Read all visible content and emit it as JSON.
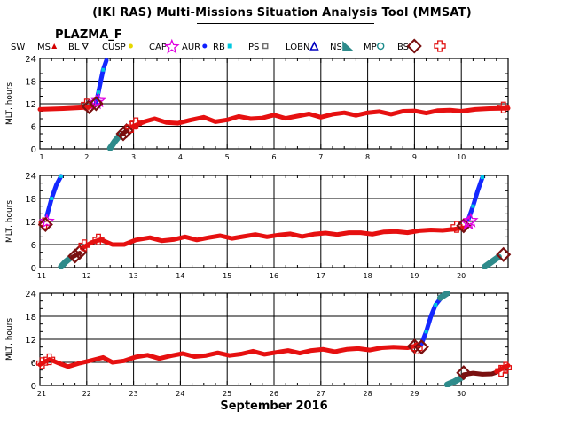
{
  "title": "(IKI RAS) Multi-Missions Situation Analysis Tool (MMSAT)",
  "mission": "PLAZMA_F",
  "legend": [
    {
      "label": "SW",
      "marker": "none",
      "color": "#000000"
    },
    {
      "label": "MS",
      "marker": "triangle-up",
      "color": "#d40000"
    },
    {
      "label": "BL",
      "marker": "triangle-down",
      "color": "#000000"
    },
    {
      "label": "CUSP",
      "marker": "dot",
      "color": "#e6d800"
    },
    {
      "label": "CAP",
      "marker": "star",
      "color": "#e000e0"
    },
    {
      "label": "AUR",
      "marker": "dot",
      "color": "#1020ff"
    },
    {
      "label": "RB",
      "marker": "square",
      "color": "#00c8e0"
    },
    {
      "label": "PS",
      "marker": "square-open",
      "color": "#707070"
    },
    {
      "label": "LOBN",
      "marker": "triangle-open",
      "color": "#0000c0"
    },
    {
      "label": "NS",
      "marker": "triangle-fill",
      "color": "#2e8b8b"
    },
    {
      "label": "MP",
      "marker": "circle-open",
      "color": "#1a8a8a"
    },
    {
      "label": "BS",
      "marker": "diamond-open",
      "color": "#7a1010"
    },
    {
      "label": "",
      "marker": "cross-open",
      "color": "#e01010"
    }
  ],
  "colors": {
    "sw": "#e61010",
    "aur": "#1428ff",
    "ns": "#2e8b8b",
    "bs": "#7a1010",
    "cross": "#e01010",
    "cap": "#e000e0",
    "rb": "#00c8e0",
    "ps": "#808080",
    "grid": "#000000"
  },
  "chart_data": [
    {
      "type": "line",
      "ylabel": "MLT, hours",
      "xlim": [
        1,
        11
      ],
      "ylim": [
        0,
        24
      ],
      "xticks": [
        1,
        2,
        3,
        4,
        5,
        6,
        7,
        8,
        9,
        10
      ],
      "yticks": [
        0,
        6,
        12,
        18,
        24
      ],
      "series": [
        {
          "name": "SW",
          "points": [
            [
              1,
              10.5
            ],
            [
              1.5,
              10.7
            ],
            [
              1.95,
              11.0
            ],
            [
              2.1,
              11.3
            ]
          ]
        },
        {
          "name": "AUR",
          "points": [
            [
              2.2,
              12.5
            ],
            [
              2.25,
              15
            ],
            [
              2.3,
              18
            ],
            [
              2.35,
              21
            ],
            [
              2.42,
              23.5
            ]
          ]
        },
        {
          "name": "NS",
          "points": [
            [
              2.5,
              0.2
            ],
            [
              2.6,
              2
            ],
            [
              2.7,
              3.5
            ]
          ]
        },
        {
          "name": "BS",
          "points": [
            [
              2.75,
              3.8
            ],
            [
              2.85,
              4.8
            ]
          ]
        },
        {
          "name": "SW",
          "points": [
            [
              2.95,
              5.8
            ],
            [
              3.25,
              7.3
            ],
            [
              3.45,
              8.0
            ],
            [
              3.7,
              7.0
            ],
            [
              3.95,
              6.8
            ],
            [
              4.2,
              7.6
            ],
            [
              4.5,
              8.4
            ],
            [
              4.75,
              7.2
            ],
            [
              5.0,
              7.7
            ],
            [
              5.25,
              8.6
            ],
            [
              5.5,
              8.0
            ],
            [
              5.75,
              8.2
            ],
            [
              6.0,
              9.0
            ],
            [
              6.25,
              8.1
            ],
            [
              6.5,
              8.7
            ],
            [
              6.75,
              9.3
            ],
            [
              7.0,
              8.4
            ],
            [
              7.25,
              9.2
            ],
            [
              7.5,
              9.6
            ],
            [
              7.75,
              8.9
            ],
            [
              8.0,
              9.6
            ],
            [
              8.25,
              9.9
            ],
            [
              8.5,
              9.2
            ],
            [
              8.75,
              10.0
            ],
            [
              9.0,
              10.1
            ],
            [
              9.25,
              9.5
            ],
            [
              9.5,
              10.2
            ],
            [
              9.75,
              10.3
            ],
            [
              10.0,
              10.0
            ],
            [
              10.3,
              10.5
            ],
            [
              10.6,
              10.7
            ],
            [
              11,
              10.8
            ]
          ]
        }
      ],
      "markers": [
        {
          "kind": "cross",
          "x": 2.0,
          "y": 11.8
        },
        {
          "kind": "bs",
          "x": 2.05,
          "y": 11.2
        },
        {
          "kind": "star",
          "x": 2.2,
          "y": 12.3
        },
        {
          "kind": "star",
          "x": 2.25,
          "y": 12.8
        },
        {
          "kind": "bs",
          "x": 2.2,
          "y": 12.0
        },
        {
          "kind": "bs",
          "x": 2.78,
          "y": 4.0
        },
        {
          "kind": "bs",
          "x": 2.85,
          "y": 4.8
        },
        {
          "kind": "cross",
          "x": 2.95,
          "y": 5.8
        },
        {
          "kind": "cross",
          "x": 3.05,
          "y": 6.8
        },
        {
          "kind": "cross",
          "x": 10.9,
          "y": 11.0
        }
      ]
    },
    {
      "type": "line",
      "ylabel": "MLT, hours",
      "xlim": [
        11,
        21
      ],
      "ylim": [
        0,
        24
      ],
      "xticks": [
        11,
        12,
        13,
        14,
        15,
        16,
        17,
        18,
        19,
        20
      ],
      "yticks": [
        0,
        6,
        12,
        18,
        24
      ],
      "series": [
        {
          "name": "AUR",
          "points": [
            [
              11.15,
              13.5
            ],
            [
              11.25,
              18
            ],
            [
              11.35,
              21.5
            ],
            [
              11.45,
              23.8
            ]
          ]
        },
        {
          "name": "NS",
          "points": [
            [
              11.45,
              0.2
            ],
            [
              11.55,
              1.5
            ],
            [
              11.65,
              2.5
            ]
          ]
        },
        {
          "name": "BS",
          "points": [
            [
              11.7,
              2.8
            ],
            [
              11.85,
              3.8
            ]
          ]
        },
        {
          "name": "SW",
          "points": [
            [
              11.9,
              5.0
            ],
            [
              12.1,
              6.5
            ],
            [
              12.3,
              7.3
            ],
            [
              12.55,
              6.0
            ],
            [
              12.8,
              6.0
            ],
            [
              13.05,
              7.2
            ],
            [
              13.35,
              7.8
            ],
            [
              13.6,
              7.0
            ],
            [
              13.85,
              7.3
            ],
            [
              14.1,
              8.0
            ],
            [
              14.35,
              7.2
            ],
            [
              14.6,
              7.8
            ],
            [
              14.85,
              8.3
            ],
            [
              15.1,
              7.6
            ],
            [
              15.35,
              8.1
            ],
            [
              15.6,
              8.6
            ],
            [
              15.85,
              8.0
            ],
            [
              16.1,
              8.5
            ],
            [
              16.35,
              8.8
            ],
            [
              16.6,
              8.1
            ],
            [
              16.85,
              8.7
            ],
            [
              17.1,
              9.0
            ],
            [
              17.35,
              8.6
            ],
            [
              17.6,
              9.1
            ],
            [
              17.85,
              9.1
            ],
            [
              18.1,
              8.7
            ],
            [
              18.35,
              9.3
            ],
            [
              18.6,
              9.4
            ],
            [
              18.85,
              9.1
            ],
            [
              19.1,
              9.6
            ],
            [
              19.35,
              9.8
            ],
            [
              19.6,
              9.7
            ],
            [
              19.85,
              10.0
            ],
            [
              20.1,
              10.4
            ]
          ]
        },
        {
          "name": "AUR",
          "points": [
            [
              20.15,
              12.5
            ],
            [
              20.25,
              16
            ],
            [
              20.35,
              20
            ],
            [
              20.45,
              23.5
            ]
          ]
        },
        {
          "name": "NS",
          "points": [
            [
              20.5,
              0.2
            ],
            [
              20.65,
              1.5
            ],
            [
              20.8,
              2.8
            ]
          ]
        }
      ],
      "markers": [
        {
          "kind": "cross",
          "x": 11.1,
          "y": 11.5
        },
        {
          "kind": "star",
          "x": 11.15,
          "y": 12.0
        },
        {
          "kind": "bs",
          "x": 11.12,
          "y": 11.2
        },
        {
          "kind": "bs",
          "x": 11.75,
          "y": 3.0
        },
        {
          "kind": "bs",
          "x": 11.85,
          "y": 4.0
        },
        {
          "kind": "cross",
          "x": 11.95,
          "y": 5.8
        },
        {
          "kind": "cross",
          "x": 12.25,
          "y": 7.3
        },
        {
          "kind": "cross",
          "x": 19.9,
          "y": 10.6
        },
        {
          "kind": "bs",
          "x": 20.05,
          "y": 10.9
        },
        {
          "kind": "star",
          "x": 20.15,
          "y": 11.6
        },
        {
          "kind": "star",
          "x": 20.2,
          "y": 12.2
        },
        {
          "kind": "bs",
          "x": 20.9,
          "y": 3.4
        }
      ]
    },
    {
      "type": "line",
      "ylabel": "MLT, hours",
      "xlabel": "September 2016",
      "xlim": [
        21,
        31
      ],
      "ylim": [
        0,
        24
      ],
      "xticks": [
        21,
        22,
        23,
        24,
        25,
        26,
        27,
        28,
        29,
        30
      ],
      "yticks": [
        0,
        6,
        12,
        18,
        24
      ],
      "series": [
        {
          "name": "SW",
          "points": [
            [
              21.0,
              5.4
            ],
            [
              21.2,
              6.8
            ],
            [
              21.4,
              5.8
            ],
            [
              21.6,
              4.9
            ],
            [
              21.85,
              5.8
            ],
            [
              22.1,
              6.5
            ],
            [
              22.35,
              7.3
            ],
            [
              22.55,
              6.0
            ],
            [
              22.8,
              6.4
            ],
            [
              23.05,
              7.4
            ],
            [
              23.3,
              7.9
            ],
            [
              23.55,
              7.0
            ],
            [
              23.8,
              7.7
            ],
            [
              24.05,
              8.3
            ],
            [
              24.3,
              7.5
            ],
            [
              24.55,
              7.8
            ],
            [
              24.8,
              8.5
            ],
            [
              25.05,
              7.8
            ],
            [
              25.3,
              8.2
            ],
            [
              25.55,
              8.9
            ],
            [
              25.8,
              8.1
            ],
            [
              26.05,
              8.6
            ],
            [
              26.3,
              9.1
            ],
            [
              26.55,
              8.4
            ],
            [
              26.8,
              9.1
            ],
            [
              27.05,
              9.4
            ],
            [
              27.3,
              8.8
            ],
            [
              27.55,
              9.4
            ],
            [
              27.8,
              9.6
            ],
            [
              28.05,
              9.2
            ],
            [
              28.3,
              9.8
            ],
            [
              28.55,
              10.0
            ],
            [
              28.85,
              9.8
            ],
            [
              29.1,
              10.5
            ]
          ]
        },
        {
          "name": "AUR",
          "points": [
            [
              29.15,
              10.8
            ],
            [
              29.25,
              14
            ],
            [
              29.35,
              18
            ],
            [
              29.45,
              21
            ],
            [
              29.55,
              22.5
            ]
          ]
        },
        {
          "name": "NS",
          "points": [
            [
              29.55,
              22.8
            ],
            [
              29.7,
              24.0
            ]
          ]
        },
        {
          "name": "NS",
          "points": [
            [
              29.7,
              0.2
            ],
            [
              29.85,
              1.0
            ],
            [
              30.0,
              2.0
            ]
          ]
        },
        {
          "name": "BS",
          "points": [
            [
              30.05,
              2.8
            ],
            [
              30.25,
              3.2
            ],
            [
              30.45,
              2.9
            ],
            [
              30.65,
              3.0
            ],
            [
              30.75,
              3.4
            ]
          ]
        },
        {
          "name": "SW",
          "points": [
            [
              30.75,
              3.6
            ],
            [
              31.0,
              5.2
            ]
          ]
        }
      ],
      "markers": [
        {
          "kind": "cross",
          "x": 21.05,
          "y": 5.8
        },
        {
          "kind": "cross",
          "x": 21.2,
          "y": 6.8
        },
        {
          "kind": "bs",
          "x": 29.0,
          "y": 10.2
        },
        {
          "kind": "cross",
          "x": 29.05,
          "y": 9.6
        },
        {
          "kind": "bs",
          "x": 29.15,
          "y": 10.0
        },
        {
          "kind": "bs",
          "x": 30.05,
          "y": 3.3
        },
        {
          "kind": "cross",
          "x": 30.85,
          "y": 3.8
        },
        {
          "kind": "cross",
          "x": 30.95,
          "y": 4.6
        }
      ]
    }
  ]
}
